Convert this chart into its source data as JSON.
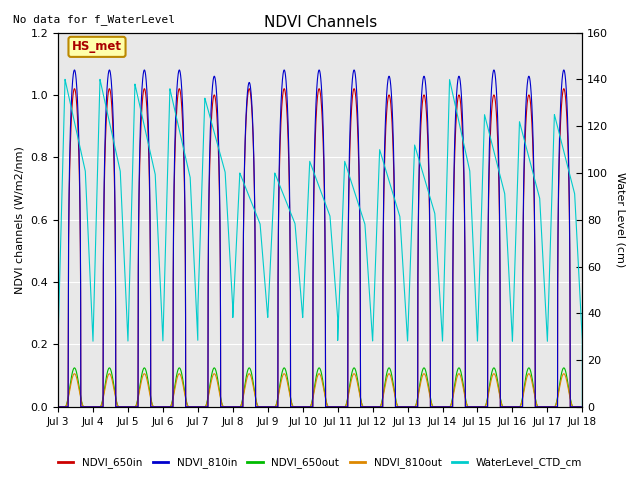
{
  "title": "NDVI Channels",
  "ylabel_left": "NDVI channels (W/m2/nm)",
  "ylabel_right": "Water Level (cm)",
  "no_data_text": "No data for f_WaterLevel",
  "station_label": "HS_met",
  "ylim_left": [
    0.0,
    1.2
  ],
  "ylim_right": [
    0,
    160
  ],
  "xtick_labels": [
    "Jul 3",
    "Jul 4",
    "Jul 5",
    "Jul 6",
    "Jul 7",
    "Jul 8",
    "Jul 9",
    "Jul 10",
    "Jul 11",
    "Jul 12",
    "Jul 13",
    "Jul 14",
    "Jul 15",
    "Jul 16",
    "Jul 17",
    "Jul 18"
  ],
  "xtick_days": [
    3,
    4,
    5,
    6,
    7,
    8,
    9,
    10,
    11,
    12,
    13,
    14,
    15,
    16,
    17,
    18
  ],
  "colors": {
    "NDVI_650in": "#cc0000",
    "NDVI_810in": "#0000cc",
    "NDVI_650out": "#00bb00",
    "NDVI_810out": "#dd8800",
    "WaterLevel_CTD_cm": "#00cccc",
    "station_box_face": "#ffffaa",
    "station_box_edge": "#bb8800",
    "station_text": "#aa0000",
    "background": "#e8e8e8",
    "grid": "#ffffff"
  },
  "wl_peaks": [
    140,
    140,
    138,
    136,
    132,
    100,
    100,
    105,
    105,
    110,
    112,
    140,
    125,
    122,
    125
  ],
  "wl_mins": [
    28,
    28,
    28,
    28,
    42,
    38,
    38,
    38,
    28,
    28,
    28,
    28,
    28,
    28,
    28
  ],
  "ndvi_peaks_810": [
    1.08,
    1.08,
    1.08,
    1.08,
    1.06,
    1.04,
    1.08,
    1.08,
    1.08,
    1.06,
    1.06,
    1.06,
    1.08,
    1.06,
    1.08
  ],
  "ndvi_peaks_650": [
    1.02,
    1.02,
    1.02,
    1.02,
    1.0,
    1.02,
    1.02,
    1.02,
    1.02,
    1.0,
    1.0,
    1.0,
    1.0,
    1.0,
    1.02
  ],
  "ndvi_out_scale": 0.125,
  "figsize": [
    6.4,
    4.8
  ],
  "dpi": 100
}
